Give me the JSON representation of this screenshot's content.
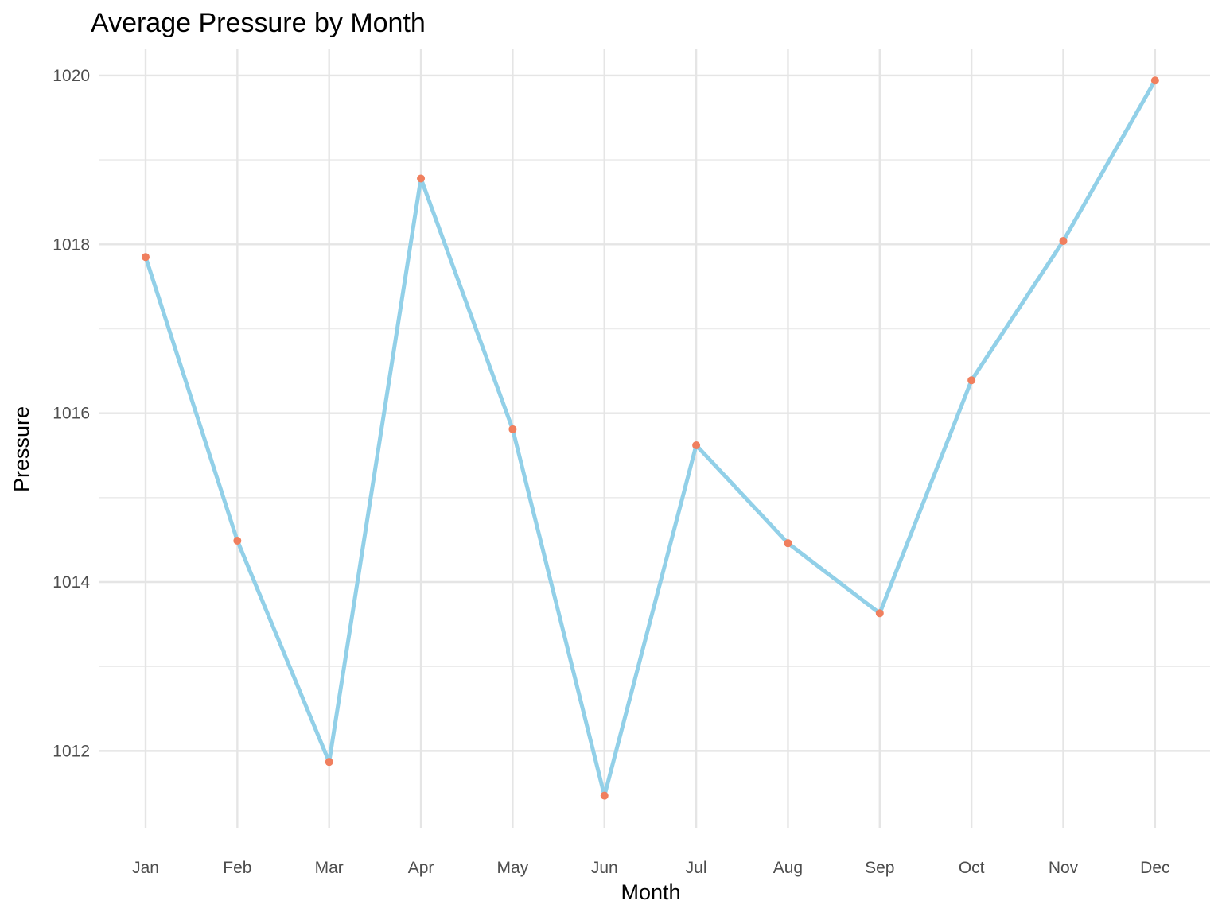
{
  "chart_data": {
    "type": "line",
    "title": "Average Pressure by Month",
    "xlabel": "Month",
    "ylabel": "Pressure",
    "categories": [
      "Jan",
      "Feb",
      "Mar",
      "Apr",
      "May",
      "Jun",
      "Jul",
      "Aug",
      "Sep",
      "Oct",
      "Nov",
      "Dec"
    ],
    "series": [
      {
        "values": [
          1017.85,
          1014.49,
          1011.87,
          1018.78,
          1015.81,
          1011.47,
          1015.62,
          1014.46,
          1013.63,
          1016.39,
          1018.04,
          1019.94
        ]
      }
    ],
    "yticks": [
      1012,
      1014,
      1016,
      1018,
      1020
    ],
    "ylim": [
      1011.09,
      1020.31
    ],
    "grid": true,
    "legend": "none",
    "line_color": "#92d0e8",
    "point_color": "#f07f5e"
  }
}
